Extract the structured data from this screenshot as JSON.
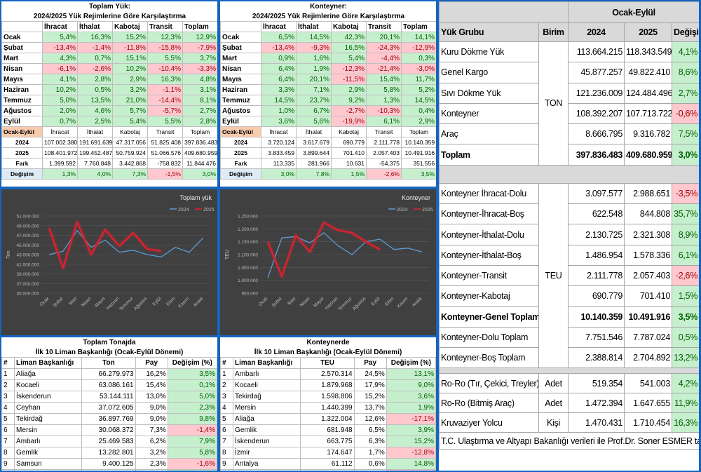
{
  "toplam_yuk": {
    "title": "Toplam Yük:",
    "subtitle": "2024/2025 Yük Rejimlerine Göre Karşılaştırma",
    "columns": [
      "İhracat",
      "İthalat",
      "Kabotaj",
      "Transit",
      "Toplam"
    ],
    "rows": [
      [
        "Ocak",
        "5,4%",
        "16,3%",
        "15,2%",
        "12,3%",
        "12,9%"
      ],
      [
        "Şubat",
        "-13,4%",
        "-1,4%",
        "-11,8%",
        "-15,8%",
        "-7,9%"
      ],
      [
        "Mart",
        "4,3%",
        "0,7%",
        "15,1%",
        "5,5%",
        "3,7%"
      ],
      [
        "Nisan",
        "-6,1%",
        "-2,6%",
        "10,2%",
        "-10,4%",
        "-3,3%"
      ],
      [
        "Mayıs",
        "4,1%",
        "2,8%",
        "2,9%",
        "16,3%",
        "4,8%"
      ],
      [
        "Haziran",
        "10,2%",
        "0,5%",
        "3,2%",
        "-1,1%",
        "3,1%"
      ],
      [
        "Temmuz",
        "5,0%",
        "13,5%",
        "21,0%",
        "-14,4%",
        "8,1%"
      ],
      [
        "Ağustos",
        "2,0%",
        "4,6%",
        "5,7%",
        "-5,7%",
        "2,7%"
      ],
      [
        "Eylül",
        "0,7%",
        "2,5%",
        "5,4%",
        "5,5%",
        "2,8%"
      ]
    ],
    "summary": {
      "label": "Ocak-Eylül",
      "columns": [
        "İhracat",
        "İthalat",
        "Kabotaj",
        "Transit",
        "Toplam"
      ],
      "rows": [
        [
          "2024",
          "107.002.380",
          "191.691.639",
          "47.317.056",
          "51.825.408",
          "397.836.483"
        ],
        [
          "2025",
          "108.401.972",
          "199.452.487",
          "50.759.924",
          "51.066.576",
          "409.680.959"
        ],
        [
          "Fark",
          "1.399.592",
          "7.760.848",
          "3.442.868",
          "-758.832",
          "11.844.476"
        ],
        [
          "Değişim",
          "1,3%",
          "4,0%",
          "7,3%",
          "-1,5%",
          "3,0%"
        ]
      ]
    }
  },
  "konteyner": {
    "title": "Konteyner:",
    "subtitle": "2024/2025 Yük Rejimlerine Göre Karşılaştırma",
    "columns": [
      "İhracat",
      "İthalat",
      "Kabotaj",
      "Transit",
      "Toplam"
    ],
    "rows": [
      [
        "Ocak",
        "6,5%",
        "14,5%",
        "42,3%",
        "20,1%",
        "14,1%"
      ],
      [
        "Şubat",
        "-13,4%",
        "-9,3%",
        "16,5%",
        "-24,3%",
        "-12,9%"
      ],
      [
        "Mart",
        "0,9%",
        "1,6%",
        "5,4%",
        "-4,4%",
        "0,3%"
      ],
      [
        "Nisan",
        "6,4%",
        "1,9%",
        "-12,3%",
        "-21,4%",
        "-3,0%"
      ],
      [
        "Mayıs",
        "6,4%",
        "20,1%",
        "-11,5%",
        "15,4%",
        "11,7%"
      ],
      [
        "Haziran",
        "3,3%",
        "7,1%",
        "2,9%",
        "5,8%",
        "5,2%"
      ],
      [
        "Temmuz",
        "14,5%",
        "23,7%",
        "9,2%",
        "1,3%",
        "14,5%"
      ],
      [
        "Ağustos",
        "1,0%",
        "6,7%",
        "-2,7%",
        "-10,3%",
        "0,4%"
      ],
      [
        "Eylül",
        "3,6%",
        "5,6%",
        "-19,9%",
        "6,1%",
        "2,9%"
      ]
    ],
    "summary": {
      "label": "Ocak-Eylül",
      "columns": [
        "İhracat",
        "İthalat",
        "Kabotaj",
        "Transit",
        "Toplam"
      ],
      "rows": [
        [
          "2024",
          "3.720.124",
          "3.617.679",
          "690.779",
          "2.111.778",
          "10.140.359"
        ],
        [
          "2025",
          "3.833.459",
          "3.899.644",
          "701.410",
          "2.057.403",
          "10.491.916"
        ],
        [
          "Fark",
          "113.335",
          "281.966",
          "10.631",
          "-54.375",
          "351.556"
        ],
        [
          "Değişim",
          "3,0%",
          "7,8%",
          "1,5%",
          "-2,6%",
          "3,5%"
        ]
      ]
    }
  },
  "chart_data": [
    {
      "type": "line",
      "title": "Toplam yük",
      "y_label": "Ton",
      "grid": true,
      "legend": "top",
      "categories": [
        "Ocak",
        "Şubat",
        "Mart",
        "Nisan",
        "Mayıs",
        "Haziran",
        "Temmuz",
        "Ağustos",
        "Eylül",
        "Ekim",
        "Kasım",
        "Aralık"
      ],
      "series": [
        {
          "name": "2024",
          "color": "#5b9bd5",
          "values": [
            43000000,
            43700000,
            48000000,
            44500000,
            46000000,
            43500000,
            43900000,
            43000000,
            42500000,
            44500000,
            43500000,
            46500000
          ]
        },
        {
          "name": "2025",
          "color": "#e0202e",
          "values": [
            48500000,
            40200000,
            49800000,
            43000000,
            48200000,
            44800000,
            47500000,
            44200000,
            43700000,
            null,
            null,
            null
          ]
        }
      ],
      "ylim": [
        35000000,
        51000000
      ],
      "yticks": [
        {
          "value": 35000000,
          "label": "35.000.000"
        },
        {
          "value": 37000000,
          "label": "37.000.000"
        },
        {
          "value": 39000000,
          "label": "39.000.000"
        },
        {
          "value": 41000000,
          "label": "41.000.000"
        },
        {
          "value": 43000000,
          "label": "43.000.000"
        },
        {
          "value": 45000000,
          "label": "45.000.000"
        },
        {
          "value": 47000000,
          "label": "47.000.000"
        },
        {
          "value": 49000000,
          "label": "49.000.000"
        },
        {
          "value": 51000000,
          "label": "51.000.000"
        }
      ]
    },
    {
      "type": "line",
      "title": "Konteyner",
      "y_label": "TEU",
      "grid": true,
      "legend": "top",
      "categories": [
        "Ocak",
        "Şubat",
        "Mart",
        "Nisan",
        "Mayıs",
        "Haziran",
        "Temmuz",
        "Ağustos",
        "Eylül",
        "Ekim",
        "Kasım",
        "Aralık"
      ],
      "series": [
        {
          "name": "2024",
          "color": "#5b9bd5",
          "values": [
            1010000,
            1165000,
            1170000,
            1145000,
            1185000,
            1135000,
            1100000,
            1150000,
            1160000,
            1120000,
            1125000,
            1110000
          ]
        },
        {
          "name": "2025",
          "color": "#e0202e",
          "values": [
            1150000,
            1015000,
            1175000,
            1110000,
            1225000,
            1195000,
            1185000,
            1150000,
            1120000,
            null,
            null,
            null
          ]
        }
      ],
      "ylim": [
        950000,
        1250000
      ],
      "yticks": [
        {
          "value": 950000,
          "label": "950.000"
        },
        {
          "value": 1000000,
          "label": "1.000.000"
        },
        {
          "value": 1050000,
          "label": "1.050.000"
        },
        {
          "value": 1100000,
          "label": "1.100.000"
        },
        {
          "value": 1150000,
          "label": "1.150.000"
        },
        {
          "value": 1200000,
          "label": "1.200.000"
        },
        {
          "value": 1250000,
          "label": "1.250.000"
        }
      ]
    }
  ],
  "top_tonnage": {
    "title": "Toplam Tonajda",
    "subtitle": "İlk 10 Liman Başkanlığı (Ocak-Eylül Dönemi)",
    "columns": [
      "#",
      "Liman  Başkanlığı",
      "Ton",
      "Pay",
      "Değişim (%)"
    ],
    "rows": [
      [
        "1",
        "Aliağa",
        "66.279.973",
        "16,2%",
        "3,5%"
      ],
      [
        "2",
        "Kocaeli",
        "63.086.161",
        "15,4%",
        "0,1%"
      ],
      [
        "3",
        "İskenderun",
        "53.144.111",
        "13,0%",
        "5,0%"
      ],
      [
        "4",
        "Ceyhan",
        "37.072.605",
        "9,0%",
        "2,3%"
      ],
      [
        "5",
        "Tekirdağ",
        "36.897.769",
        "9,0%",
        "9,8%"
      ],
      [
        "6",
        "Mersin",
        "30.068.372",
        "7,3%",
        "-1,4%"
      ],
      [
        "7",
        "Ambarlı",
        "25.469.583",
        "6,2%",
        "7,9%"
      ],
      [
        "8",
        "Gemlik",
        "13.282.801",
        "3,2%",
        "5,8%"
      ],
      [
        "9",
        "Samsun",
        "9.400.125",
        "2,3%",
        "-1,6%"
      ],
      [
        "10",
        "Zonguldak",
        "8.982.425",
        "2,2%",
        "2,0%"
      ]
    ]
  },
  "top_container": {
    "title": "Konteynerde",
    "subtitle": "İlk 10 Liman Başkanlığı (Ocak-Eylül Dönemi)",
    "columns": [
      "#",
      "Liman  Başkanlığı",
      "TEU",
      "Pay",
      "Değişim (%)"
    ],
    "rows": [
      [
        "1",
        "Ambarlı",
        "2.570.314",
        "24,5%",
        "13,1%"
      ],
      [
        "2",
        "Kocaeli",
        "1.879.968",
        "17,9%",
        "9,0%"
      ],
      [
        "3",
        "Tekirdağ",
        "1.598.806",
        "15,2%",
        "3,6%"
      ],
      [
        "4",
        "Mersin",
        "1.440.399",
        "13,7%",
        "1,9%"
      ],
      [
        "5",
        "Aliağa",
        "1.322.004",
        "12,6%",
        "-17,1%"
      ],
      [
        "6",
        "Gemlik",
        "681.948",
        "6,5%",
        "3,9%"
      ],
      [
        "7",
        "İskenderun",
        "663.775",
        "6,3%",
        "15,2%"
      ],
      [
        "8",
        "İzmir",
        "174.647",
        "1,7%",
        "-12,8%"
      ],
      [
        "9",
        "Antalya",
        "61.112",
        "0,6%",
        "14,8%"
      ],
      [
        "10",
        "Samsun",
        "43.261",
        "0,4%",
        "-29,9%"
      ]
    ]
  },
  "summary_table": {
    "header": "Ocak-Eylül",
    "columns": [
      "Yük Grubu",
      "Birim",
      "2024",
      "2025",
      "Değişim"
    ],
    "groups": [
      {
        "unit": "TON",
        "rows": [
          [
            "Kuru Dökme Yük",
            "113.664.215",
            "118.343.549",
            "4,1%"
          ],
          [
            "Genel Kargo",
            "45.877.257",
            "49.822.410",
            "8,6%"
          ],
          [
            "Sıvı Dökme Yük",
            "121.236.009",
            "124.484.496",
            "2,7%"
          ],
          [
            "Konteyner",
            "108.392.207",
            "107.713.722",
            "-0,6%"
          ],
          [
            "Araç",
            "8.666.795",
            "9.316.782",
            "7,5%"
          ],
          [
            "Toplam",
            "397.836.483",
            "409.680.959",
            "3,0%"
          ]
        ]
      },
      {
        "unit": "TEU",
        "rows": [
          [
            "Konteyner İhracat-Dolu",
            "3.097.577",
            "2.988.651",
            "-3,5%"
          ],
          [
            "Konteyner-İhracat-Boş",
            "622.548",
            "844.808",
            "35,7%"
          ],
          [
            "Konteyner-İthalat-Dolu",
            "2.130.725",
            "2.321.308",
            "8,9%"
          ],
          [
            "Konteyner-İthalat-Boş",
            "1.486.954",
            "1.578.336",
            "6,1%"
          ],
          [
            "Konteyner-Transit",
            "2.111.778",
            "2.057.403",
            "-2,6%"
          ],
          [
            "Konteyner-Kabotaj",
            "690.779",
            "701.410",
            "1,5%"
          ],
          [
            "Konteyner-Genel Toplam",
            "10.140.359",
            "10.491.916",
            "3,5%"
          ],
          [
            "Konteyner-Dolu Toplam",
            "7.751.546",
            "7.787.024",
            "0,5%"
          ],
          [
            "Konteyner-Boş Toplam",
            "2.388.814",
            "2.704.892",
            "13,2%"
          ]
        ]
      }
    ],
    "other_rows": [
      [
        "Ro-Ro (Tır, Çekici, Treyler)",
        "Adet",
        "519.354",
        "541.003",
        "4,2%"
      ],
      [
        "Ro-Ro (Bitmiş Araç)",
        "Adet",
        "1.472.394",
        "1.647.655",
        "11,9%"
      ],
      [
        "Kruvaziyer Yolcu",
        "Kişi",
        "1.470.431",
        "1.710.454",
        "16,3%"
      ]
    ],
    "footer": "T.C. Ulaştırma ve Altyapı Bakanlığı verileri ile Prof.Dr. Soner ESMER tarafından hazırlanmıştır."
  }
}
